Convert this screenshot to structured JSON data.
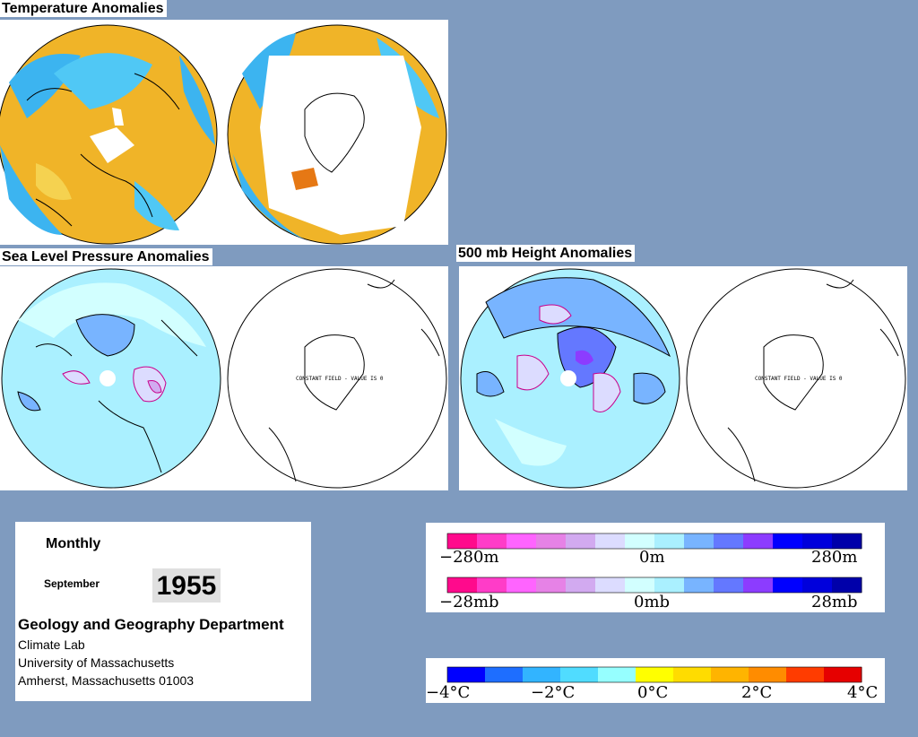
{
  "sections": {
    "temperature": "Temperature Anomalies",
    "slp": "Sea Level Pressure Anomalies",
    "height500": "500 mb Height Anomalies"
  },
  "map_notes": {
    "slp_south": "CONSTANT FIELD - VALUE IS 0",
    "h500_south": "CONSTANT FIELD - VALUE IS 0"
  },
  "info": {
    "period": "Monthly",
    "month": "September",
    "year": "1955",
    "department": "Geology and Geography Department",
    "lines": [
      "Climate Lab",
      "University of Massachusetts",
      "Amherst, Massachusetts 01003"
    ]
  },
  "scales": {
    "height": {
      "left": "−280m",
      "mid": "0m",
      "right": "280m"
    },
    "pressure": {
      "left": "−28mb",
      "mid": "0mb",
      "right": "28mb"
    },
    "temperature": {
      "ticks": [
        "−4°C",
        "−2°C",
        "0°C",
        "2°C",
        "4°C"
      ]
    }
  },
  "colors": {
    "background": "#7f9bbf",
    "anomaly_scale": [
      "#ff0a8c",
      "#ff3cc8",
      "#ff64ff",
      "#e682e6",
      "#d2aaf0",
      "#dcdcff",
      "#d2ffff",
      "#aaf0ff",
      "#78b4ff",
      "#6478ff",
      "#8c3cff",
      "#0000ff",
      "#0000dc",
      "#0000aa"
    ],
    "temperature_scale": [
      "#0000ff",
      "#1e6eff",
      "#32b4ff",
      "#50dcff",
      "#96ffff",
      "#ffff00",
      "#ffdc00",
      "#ffb400",
      "#ff8c00",
      "#ff3c00",
      "#e60000"
    ]
  }
}
